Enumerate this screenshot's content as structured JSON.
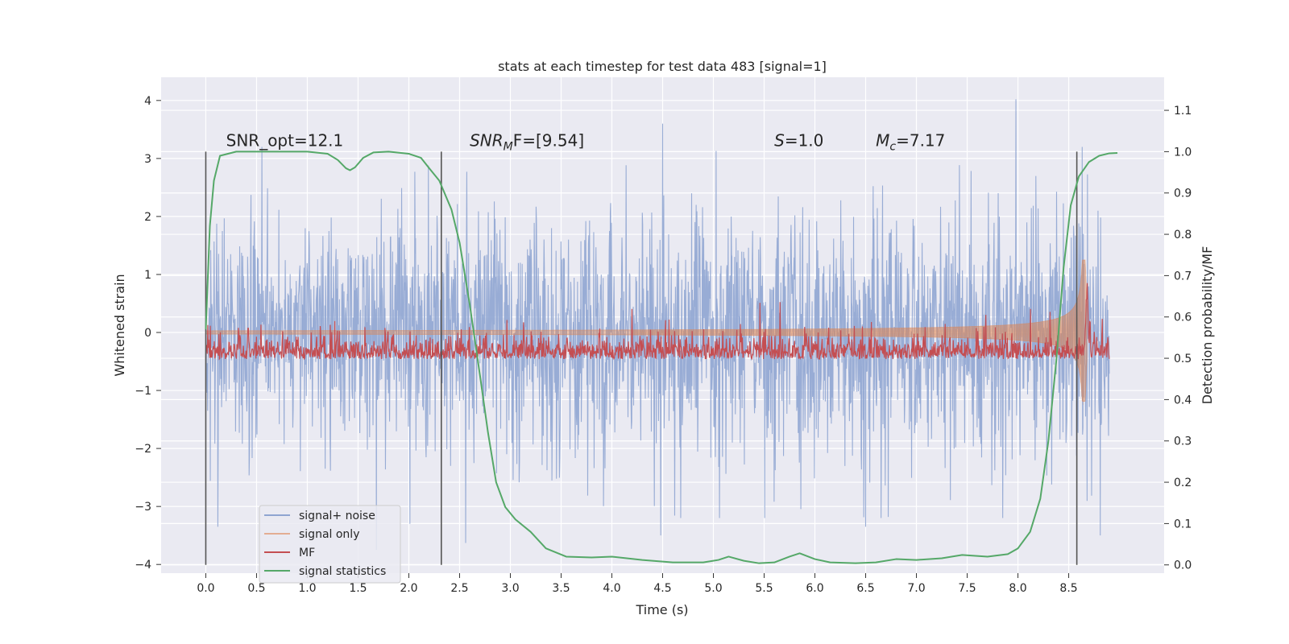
{
  "chart_data": {
    "type": "line",
    "title": "stats at each timestep for test data 483 [signal=1]",
    "xlabel": "Time (s)",
    "ylabel": "Whitened strain",
    "y2label": "Detection probability/MF",
    "xlim": [
      -0.44,
      9.44
    ],
    "ylim": [
      -4.15,
      4.4
    ],
    "y2lim": [
      -0.02,
      1.18
    ],
    "xticks": [
      0.0,
      0.5,
      1.0,
      1.5,
      2.0,
      2.5,
      3.0,
      3.5,
      4.0,
      4.5,
      5.0,
      5.5,
      6.0,
      6.5,
      7.0,
      7.5,
      8.0,
      8.5
    ],
    "xtick_labels": [
      "0.0",
      "0.5",
      "1.0",
      "1.5",
      "2.0",
      "2.5",
      "3.0",
      "3.5",
      "4.0",
      "4.5",
      "5.0",
      "5.5",
      "6.0",
      "6.5",
      "7.0",
      "7.5",
      "8.0",
      "8.5"
    ],
    "yticks": [
      4,
      3,
      2,
      1,
      0,
      -1,
      -2,
      -3,
      -4
    ],
    "ytick_labels": [
      "4",
      "3",
      "2",
      "1",
      "0",
      "−1",
      "−2",
      "−3",
      "−4"
    ],
    "y2ticks": [
      1.1,
      1.0,
      0.9,
      0.8,
      0.7,
      0.6,
      0.5,
      0.4,
      0.3,
      0.2,
      0.1,
      0.0
    ],
    "y2tick_labels": [
      "1.1",
      "1.0",
      "0.9",
      "0.8",
      "0.7",
      "0.6",
      "0.5",
      "0.4",
      "0.3",
      "0.2",
      "0.1",
      "0.0"
    ],
    "grid": true,
    "legend_position": "lower-left",
    "legend": [
      "signal+ noise",
      "signal only",
      "MF",
      "signal statistics"
    ],
    "colors": {
      "noise": "#8fa5d1",
      "signal": "#dd8452",
      "mf": "#c44e52",
      "stats": "#55a868",
      "vline": "#555555",
      "background": "#eaeaf2",
      "grid": "#ffffff"
    },
    "annotations": {
      "snr_opt": "SNR_opt=12.1",
      "snr_mf_main": "SNR",
      "snr_mf_sub": "M",
      "snr_mf_rest": "F=[9.54]",
      "s_main": "S",
      "s_rest": "=1.0",
      "mc_main": "M",
      "mc_sub": "c",
      "mc_rest": "=7.17"
    },
    "annotation_anchor_x": [
      0.2,
      2.6,
      5.6,
      6.6
    ],
    "annotation_anchor_y2": 1.0,
    "vlines": [
      0.0,
      2.32,
      8.58
    ],
    "vline_range_y2": [
      0.0,
      1.0
    ],
    "noise_series": {
      "name": "signal+ noise",
      "t_start": 0.0,
      "t_end": 8.9,
      "n_samples": 2400,
      "std": 0.85,
      "extremes": [
        {
          "t": 0.12,
          "v": -3.35
        },
        {
          "t": 2.01,
          "v": -3.3
        },
        {
          "t": 2.56,
          "v": -3.63
        },
        {
          "t": 4.5,
          "v": 3.6
        },
        {
          "t": 4.48,
          "v": -3.5
        },
        {
          "t": 6.5,
          "v": -3.35
        },
        {
          "t": 7.85,
          "v": -3.2
        },
        {
          "t": 7.98,
          "v": 4.02
        },
        {
          "t": 8.81,
          "v": -3.5
        },
        {
          "t": 1.68,
          "v": -3.75
        }
      ]
    },
    "signal_series": {
      "name": "signal only",
      "t_start": 0.0,
      "t_end": 8.68,
      "merger_time": 8.65,
      "amplitude_start": 0.03,
      "amplitude_peak": 1.25
    },
    "mf_series": {
      "name": "MF",
      "t_start": 0.0,
      "t_end": 8.9,
      "baseline": 0.51,
      "jitter": 0.025,
      "peak_time": 8.68,
      "peak_value": 0.646
    },
    "stats_series": {
      "name": "signal statistics",
      "points": [
        [
          0.0,
          0.57
        ],
        [
          0.04,
          0.82
        ],
        [
          0.08,
          0.93
        ],
        [
          0.14,
          0.99
        ],
        [
          0.3,
          1.0
        ],
        [
          0.6,
          1.0
        ],
        [
          1.0,
          1.0
        ],
        [
          1.2,
          0.995
        ],
        [
          1.3,
          0.98
        ],
        [
          1.38,
          0.96
        ],
        [
          1.42,
          0.955
        ],
        [
          1.47,
          0.962
        ],
        [
          1.55,
          0.985
        ],
        [
          1.65,
          0.998
        ],
        [
          1.8,
          1.0
        ],
        [
          2.0,
          0.995
        ],
        [
          2.12,
          0.985
        ],
        [
          2.2,
          0.96
        ],
        [
          2.3,
          0.93
        ],
        [
          2.42,
          0.86
        ],
        [
          2.5,
          0.78
        ],
        [
          2.6,
          0.63
        ],
        [
          2.7,
          0.46
        ],
        [
          2.78,
          0.32
        ],
        [
          2.86,
          0.2
        ],
        [
          2.95,
          0.14
        ],
        [
          3.05,
          0.11
        ],
        [
          3.2,
          0.08
        ],
        [
          3.35,
          0.04
        ],
        [
          3.55,
          0.02
        ],
        [
          3.8,
          0.018
        ],
        [
          4.0,
          0.02
        ],
        [
          4.3,
          0.012
        ],
        [
          4.6,
          0.006
        ],
        [
          4.9,
          0.006
        ],
        [
          5.05,
          0.012
        ],
        [
          5.15,
          0.02
        ],
        [
          5.3,
          0.01
        ],
        [
          5.45,
          0.004
        ],
        [
          5.6,
          0.006
        ],
        [
          5.75,
          0.02
        ],
        [
          5.85,
          0.028
        ],
        [
          6.0,
          0.014
        ],
        [
          6.15,
          0.006
        ],
        [
          6.4,
          0.004
        ],
        [
          6.6,
          0.006
        ],
        [
          6.8,
          0.014
        ],
        [
          7.0,
          0.012
        ],
        [
          7.25,
          0.016
        ],
        [
          7.45,
          0.024
        ],
        [
          7.7,
          0.02
        ],
        [
          7.9,
          0.026
        ],
        [
          8.0,
          0.04
        ],
        [
          8.12,
          0.08
        ],
        [
          8.22,
          0.16
        ],
        [
          8.3,
          0.3
        ],
        [
          8.38,
          0.5
        ],
        [
          8.45,
          0.72
        ],
        [
          8.52,
          0.87
        ],
        [
          8.6,
          0.94
        ],
        [
          8.7,
          0.975
        ],
        [
          8.8,
          0.99
        ],
        [
          8.9,
          0.996
        ],
        [
          8.98,
          0.997
        ]
      ]
    }
  }
}
